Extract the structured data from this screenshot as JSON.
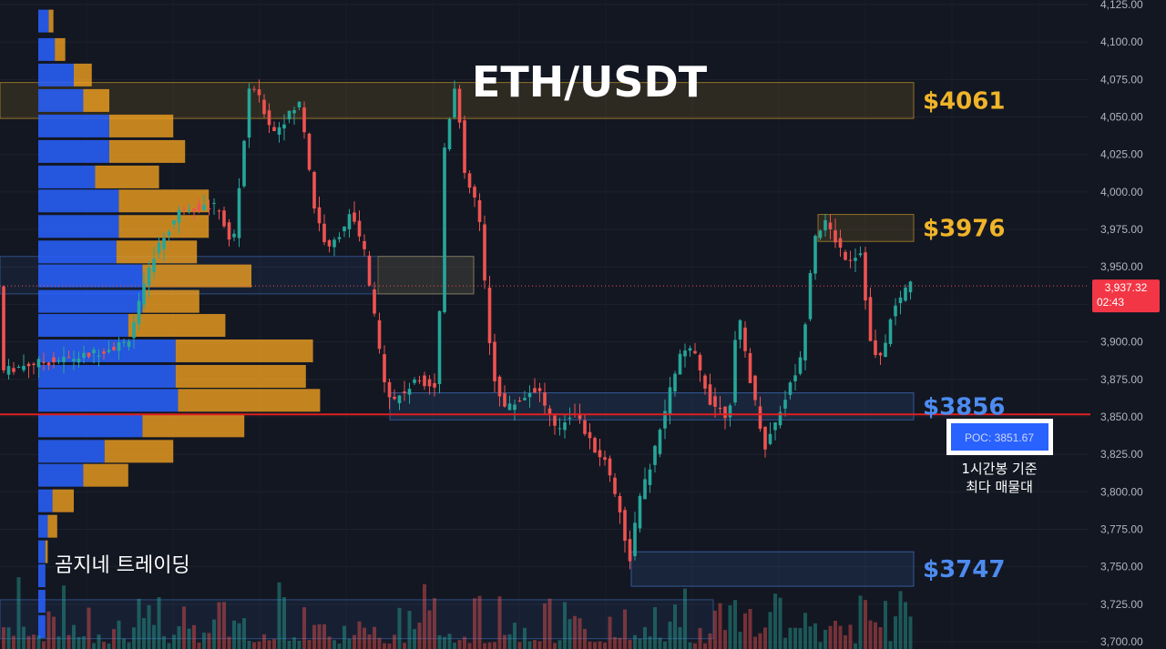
{
  "chart_data": {
    "type": "candlestick",
    "title": "ETH/USDT",
    "watermark": "곰지네 트레이딩",
    "ylim": [
      3700,
      4125
    ],
    "y_ticks": [
      "4,125.00",
      "4,100.00",
      "4,075.00",
      "4,050.00",
      "4,025.00",
      "4,000.00",
      "3,975.00",
      "3,950.00",
      "3,925.00",
      "3,900.00",
      "3,875.00",
      "3,850.00",
      "3,825.00",
      "3,800.00",
      "3,775.00",
      "3,750.00",
      "3,725.00",
      "3,700.00"
    ],
    "y_tick_values": [
      4125,
      4100,
      4075,
      4050,
      4025,
      4000,
      3975,
      3950,
      3925,
      3900,
      3875,
      3850,
      3825,
      3800,
      3775,
      3750,
      3725,
      3700
    ],
    "current_price": {
      "label": "3,937.32",
      "countdown": "02:43",
      "value": 3937.32
    },
    "poc": {
      "label": "POC: 3851.67",
      "value": 3851.67,
      "note_line1": "1시간봉 기준",
      "note_line2": "최다 매물대"
    },
    "zones": [
      {
        "label": "$4061",
        "low": 4049,
        "high": 4073,
        "color": "#f0b429"
      },
      {
        "label": "$3976",
        "low": 3967,
        "high": 3985,
        "color": "#f0b429"
      },
      {
        "label": "$3856",
        "low": 3848,
        "high": 3866,
        "color": "#4d8bf0"
      },
      {
        "label": "$3747",
        "low": 3737,
        "high": 3760,
        "color": "#4d8bf0"
      }
    ],
    "colors": {
      "up": "#26a69a",
      "down": "#ef5350",
      "poc_line": "#e02020",
      "vp_buy": "#2962ff",
      "vp_sell": "#f0a020"
    },
    "volume_profile": [
      {
        "price": 4114,
        "buy": 0.22,
        "sell": 0.1
      },
      {
        "price": 4095,
        "buy": 0.35,
        "sell": 0.22
      },
      {
        "price": 4078,
        "buy": 0.75,
        "sell": 0.38
      },
      {
        "price": 4061,
        "buy": 0.95,
        "sell": 0.55
      },
      {
        "price": 4044,
        "buy": 1.5,
        "sell": 1.35
      },
      {
        "price": 4027,
        "buy": 1.5,
        "sell": 1.6
      },
      {
        "price": 4010,
        "buy": 1.2,
        "sell": 1.35
      },
      {
        "price": 3994,
        "buy": 1.7,
        "sell": 1.9
      },
      {
        "price": 3977,
        "buy": 1.7,
        "sell": 1.9
      },
      {
        "price": 3960,
        "buy": 1.65,
        "sell": 1.7
      },
      {
        "price": 3944,
        "buy": 2.2,
        "sell": 2.3
      },
      {
        "price": 3927,
        "buy": 2.2,
        "sell": 1.2
      },
      {
        "price": 3911,
        "buy": 1.9,
        "sell": 2.05
      },
      {
        "price": 3894,
        "buy": 2.9,
        "sell": 2.9
      },
      {
        "price": 3877,
        "buy": 2.9,
        "sell": 2.75
      },
      {
        "price": 3861,
        "buy": 2.95,
        "sell": 3.0
      },
      {
        "price": 3844,
        "buy": 2.2,
        "sell": 2.15
      },
      {
        "price": 3827,
        "buy": 1.4,
        "sell": 1.45
      },
      {
        "price": 3811,
        "buy": 0.95,
        "sell": 0.95
      },
      {
        "price": 3794,
        "buy": 0.3,
        "sell": 0.45
      },
      {
        "price": 3777,
        "buy": 0.2,
        "sell": 0.2
      },
      {
        "price": 3760,
        "buy": 0.15,
        "sell": 0.05
      },
      {
        "price": 3744,
        "buy": 0.15,
        "sell": 0.0
      },
      {
        "price": 3727,
        "buy": 0.15,
        "sell": 0.0
      },
      {
        "price": 3710,
        "buy": 0.15,
        "sell": 0.0
      }
    ]
  }
}
